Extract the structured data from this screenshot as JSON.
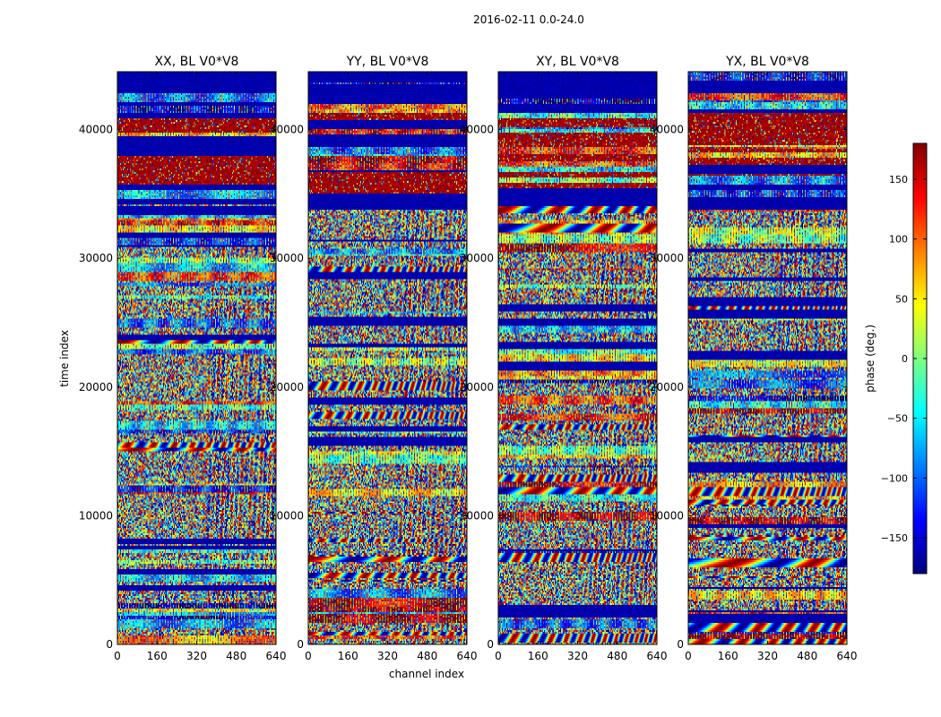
{
  "figure": {
    "suptitle": "2016-02-11 0.0-24.0",
    "xlabel": "channel index",
    "ylabel": "time index"
  },
  "colors": {
    "colormap": "jet",
    "stops": [
      "#00007f",
      "#0000ff",
      "#007fff",
      "#00ffff",
      "#7fff7f",
      "#ffff00",
      "#ff7f00",
      "#ff0000",
      "#7f0000"
    ]
  },
  "chart_data": {
    "type": "heatmap",
    "x_range": [
      0,
      640
    ],
    "y_range": [
      0,
      44500
    ],
    "x_ticks": [
      0,
      160,
      320,
      480,
      640
    ],
    "y_ticks": [
      0,
      10000,
      20000,
      30000,
      40000
    ],
    "panels": [
      {
        "title": "XX, BL V0*V8"
      },
      {
        "title": "YY, BL V0*V8"
      },
      {
        "title": "XY, BL V0*V8"
      },
      {
        "title": "YX, BL V0*V8"
      }
    ],
    "colorbar": {
      "label": "phase (deg.)",
      "range": [
        -180,
        180
      ],
      "ticks": [
        -150,
        -100,
        -50,
        0,
        50,
        100,
        150
      ],
      "tick_labels": [
        "−150",
        "−100",
        "−50",
        "0",
        "50",
        "100",
        "150"
      ]
    }
  }
}
